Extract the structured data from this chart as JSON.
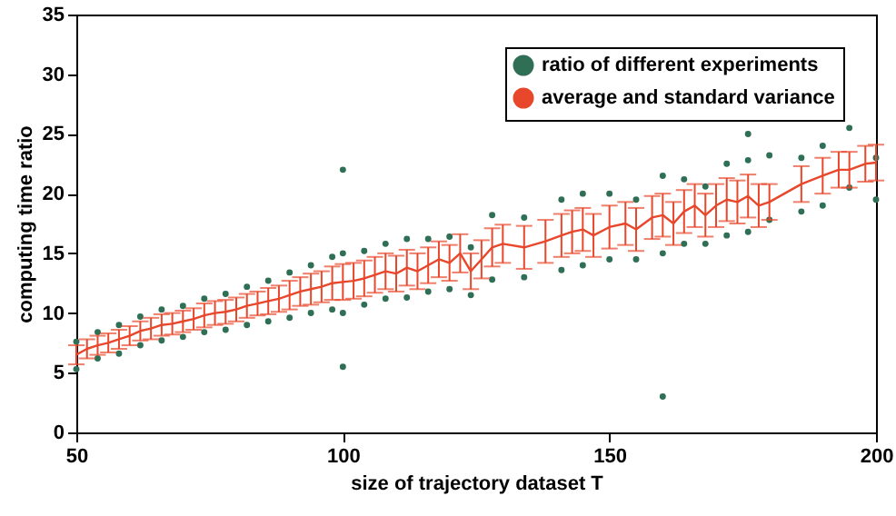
{
  "chart_data": {
    "type": "line",
    "xlabel": "size of trajectory dataset T",
    "ylabel": "computing time ratio",
    "xlim": [
      50,
      200
    ],
    "ylim": [
      0,
      35
    ],
    "xticks": [
      50,
      100,
      150,
      200
    ],
    "yticks": [
      0,
      5,
      10,
      15,
      20,
      25,
      30,
      35
    ],
    "grid": false,
    "legend": "top right",
    "series": [
      {
        "name": "ratio of different experiments",
        "type": "scatter",
        "color": "#2f6f55",
        "x": [
          50,
          50,
          54,
          54,
          58,
          58,
          62,
          62,
          66,
          66,
          70,
          70,
          74,
          74,
          78,
          78,
          82,
          82,
          86,
          86,
          90,
          90,
          94,
          94,
          98,
          98,
          100,
          100,
          100,
          100,
          104,
          104,
          108,
          108,
          112,
          112,
          116,
          116,
          120,
          120,
          124,
          124,
          128,
          128,
          134,
          134,
          141,
          141,
          145,
          145,
          150,
          150,
          155,
          155,
          160,
          160,
          160,
          164,
          164,
          168,
          168,
          172,
          172,
          176,
          176,
          176,
          180,
          180,
          186,
          186,
          190,
          190,
          195,
          195,
          200,
          200
        ],
        "values": [
          5.3,
          7.6,
          6.2,
          8.4,
          6.6,
          9,
          7.3,
          9.7,
          7.7,
          10.3,
          8,
          10.6,
          8.4,
          11.2,
          8.6,
          11.6,
          9,
          12.2,
          9.3,
          12.7,
          9.6,
          13.4,
          10,
          14,
          10.3,
          14.7,
          10,
          15,
          22,
          5.5,
          10.7,
          15.2,
          11.2,
          15.8,
          11.3,
          16.2,
          11.8,
          16.2,
          12,
          16.4,
          11.5,
          15.5,
          12.8,
          18.2,
          13,
          18,
          13.6,
          19.5,
          14,
          20,
          14.5,
          20,
          14.5,
          19.5,
          15,
          21.5,
          3,
          15.8,
          21.2,
          15.8,
          20.6,
          16.5,
          22.5,
          16.8,
          22.8,
          25,
          17.8,
          23.2,
          18.5,
          23,
          19,
          24,
          20.5,
          25.5,
          19.5,
          23
        ]
      },
      {
        "name": "average and standard variance",
        "color": "#e8472b",
        "x": [
          50,
          52,
          54,
          56,
          58,
          60,
          62,
          64,
          66,
          68,
          70,
          72,
          74,
          76,
          78,
          80,
          82,
          84,
          86,
          88,
          90,
          92,
          94,
          96,
          98,
          100,
          102,
          104,
          106,
          108,
          110,
          112,
          114,
          116,
          118,
          120,
          122,
          124,
          126,
          128,
          130,
          134,
          138,
          141,
          143,
          145,
          147,
          150,
          153,
          155,
          158,
          160,
          162,
          164,
          166,
          168,
          170,
          172,
          174,
          176,
          178,
          180,
          186,
          190,
          193,
          195,
          198,
          200
        ],
        "values": [
          6.5,
          7,
          7.3,
          7.5,
          7.8,
          8.1,
          8.5,
          8.7,
          9,
          9.1,
          9.3,
          9.5,
          9.8,
          10,
          10.1,
          10.3,
          10.6,
          10.8,
          11,
          11.2,
          11.5,
          11.8,
          12,
          12.2,
          12.5,
          12.6,
          12.7,
          12.9,
          13.2,
          13.5,
          13.3,
          13.8,
          13.5,
          14,
          14.5,
          14.2,
          15,
          13.5,
          14.5,
          15.5,
          15.8,
          15.5,
          16,
          16.5,
          16.8,
          17,
          16.5,
          17.2,
          17.5,
          17,
          18,
          18.2,
          17.5,
          18.5,
          19,
          18.2,
          19,
          19.5,
          19.3,
          19.8,
          19,
          19.3,
          20.8,
          21.5,
          22,
          22,
          22.5,
          22.6
        ],
        "errors": [
          0.8,
          0.8,
          0.8,
          0.8,
          0.8,
          0.8,
          0.8,
          0.9,
          0.9,
          0.9,
          0.9,
          0.9,
          1,
          1,
          1,
          1,
          1,
          1,
          1.1,
          1.1,
          1.2,
          1.2,
          1.3,
          1.3,
          1.4,
          1.5,
          1.5,
          1.5,
          1.5,
          1.5,
          1.5,
          1.5,
          1.5,
          1.5,
          1.5,
          1.5,
          1.6,
          1.5,
          1.6,
          1.6,
          1.6,
          1.8,
          1.8,
          1.8,
          1.8,
          1.8,
          1.8,
          1.8,
          1.8,
          1.8,
          1.8,
          1.8,
          1.8,
          1.8,
          1.8,
          1.8,
          1.8,
          1.8,
          1.8,
          1.8,
          1.8,
          1.5,
          1.5,
          1.5,
          1.5,
          1.5,
          1.5,
          1.5
        ]
      }
    ]
  }
}
